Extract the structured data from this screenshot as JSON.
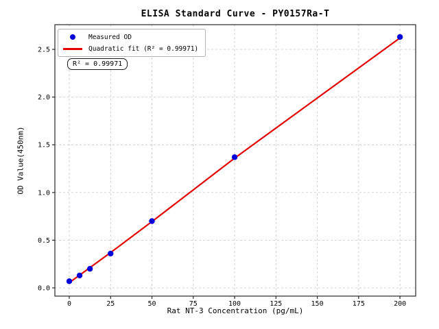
{
  "figure": {
    "background": "#ffffff"
  },
  "chart_data": {
    "type": "scatter",
    "title": "ELISA Standard Curve - PY0157Ra-T",
    "xlabel": "Rat NT-3 Concentration (pg/mL)",
    "ylabel": "OD Value(450nm)",
    "xlim": [
      -8.7,
      209.5
    ],
    "ylim": [
      -0.086,
      2.759
    ],
    "xticks": [
      0,
      25,
      50,
      75,
      100,
      125,
      150,
      175,
      200
    ],
    "xtick_labels": [
      "0",
      "25",
      "50",
      "75",
      "100",
      "125",
      "150",
      "175",
      "200"
    ],
    "yticks": [
      0.0,
      0.5,
      1.0,
      1.5,
      2.0,
      2.5
    ],
    "ytick_labels": [
      "0.0",
      "0.5",
      "1.0",
      "1.5",
      "2.0",
      "2.5"
    ],
    "grid": true,
    "grid_style": "dashed",
    "legend_position": "upper-left",
    "annotation": "R² = 0.99971",
    "series": [
      {
        "name": "Measured OD",
        "type": "scatter",
        "color": "#0000dd",
        "marker": "dot",
        "x": [
          0,
          6.25,
          12.5,
          25,
          50,
          100,
          200
        ],
        "y": [
          0.07,
          0.13,
          0.2,
          0.36,
          0.7,
          1.37,
          2.63
        ]
      },
      {
        "name": "Quadratic fit (R² = 0.99971)",
        "type": "line",
        "color": "#e50000",
        "marker": "line",
        "x": [
          0,
          25,
          50,
          100,
          150,
          200
        ],
        "y": [
          0.055,
          0.37,
          0.695,
          1.36,
          1.99,
          2.62
        ]
      }
    ]
  },
  "style": {
    "point_color": "#0000dd",
    "line_color": "#e50000",
    "grid_color": "#cccccc",
    "spine_color": "#262626",
    "tick_color": "#262626",
    "text_color": "#000000"
  }
}
